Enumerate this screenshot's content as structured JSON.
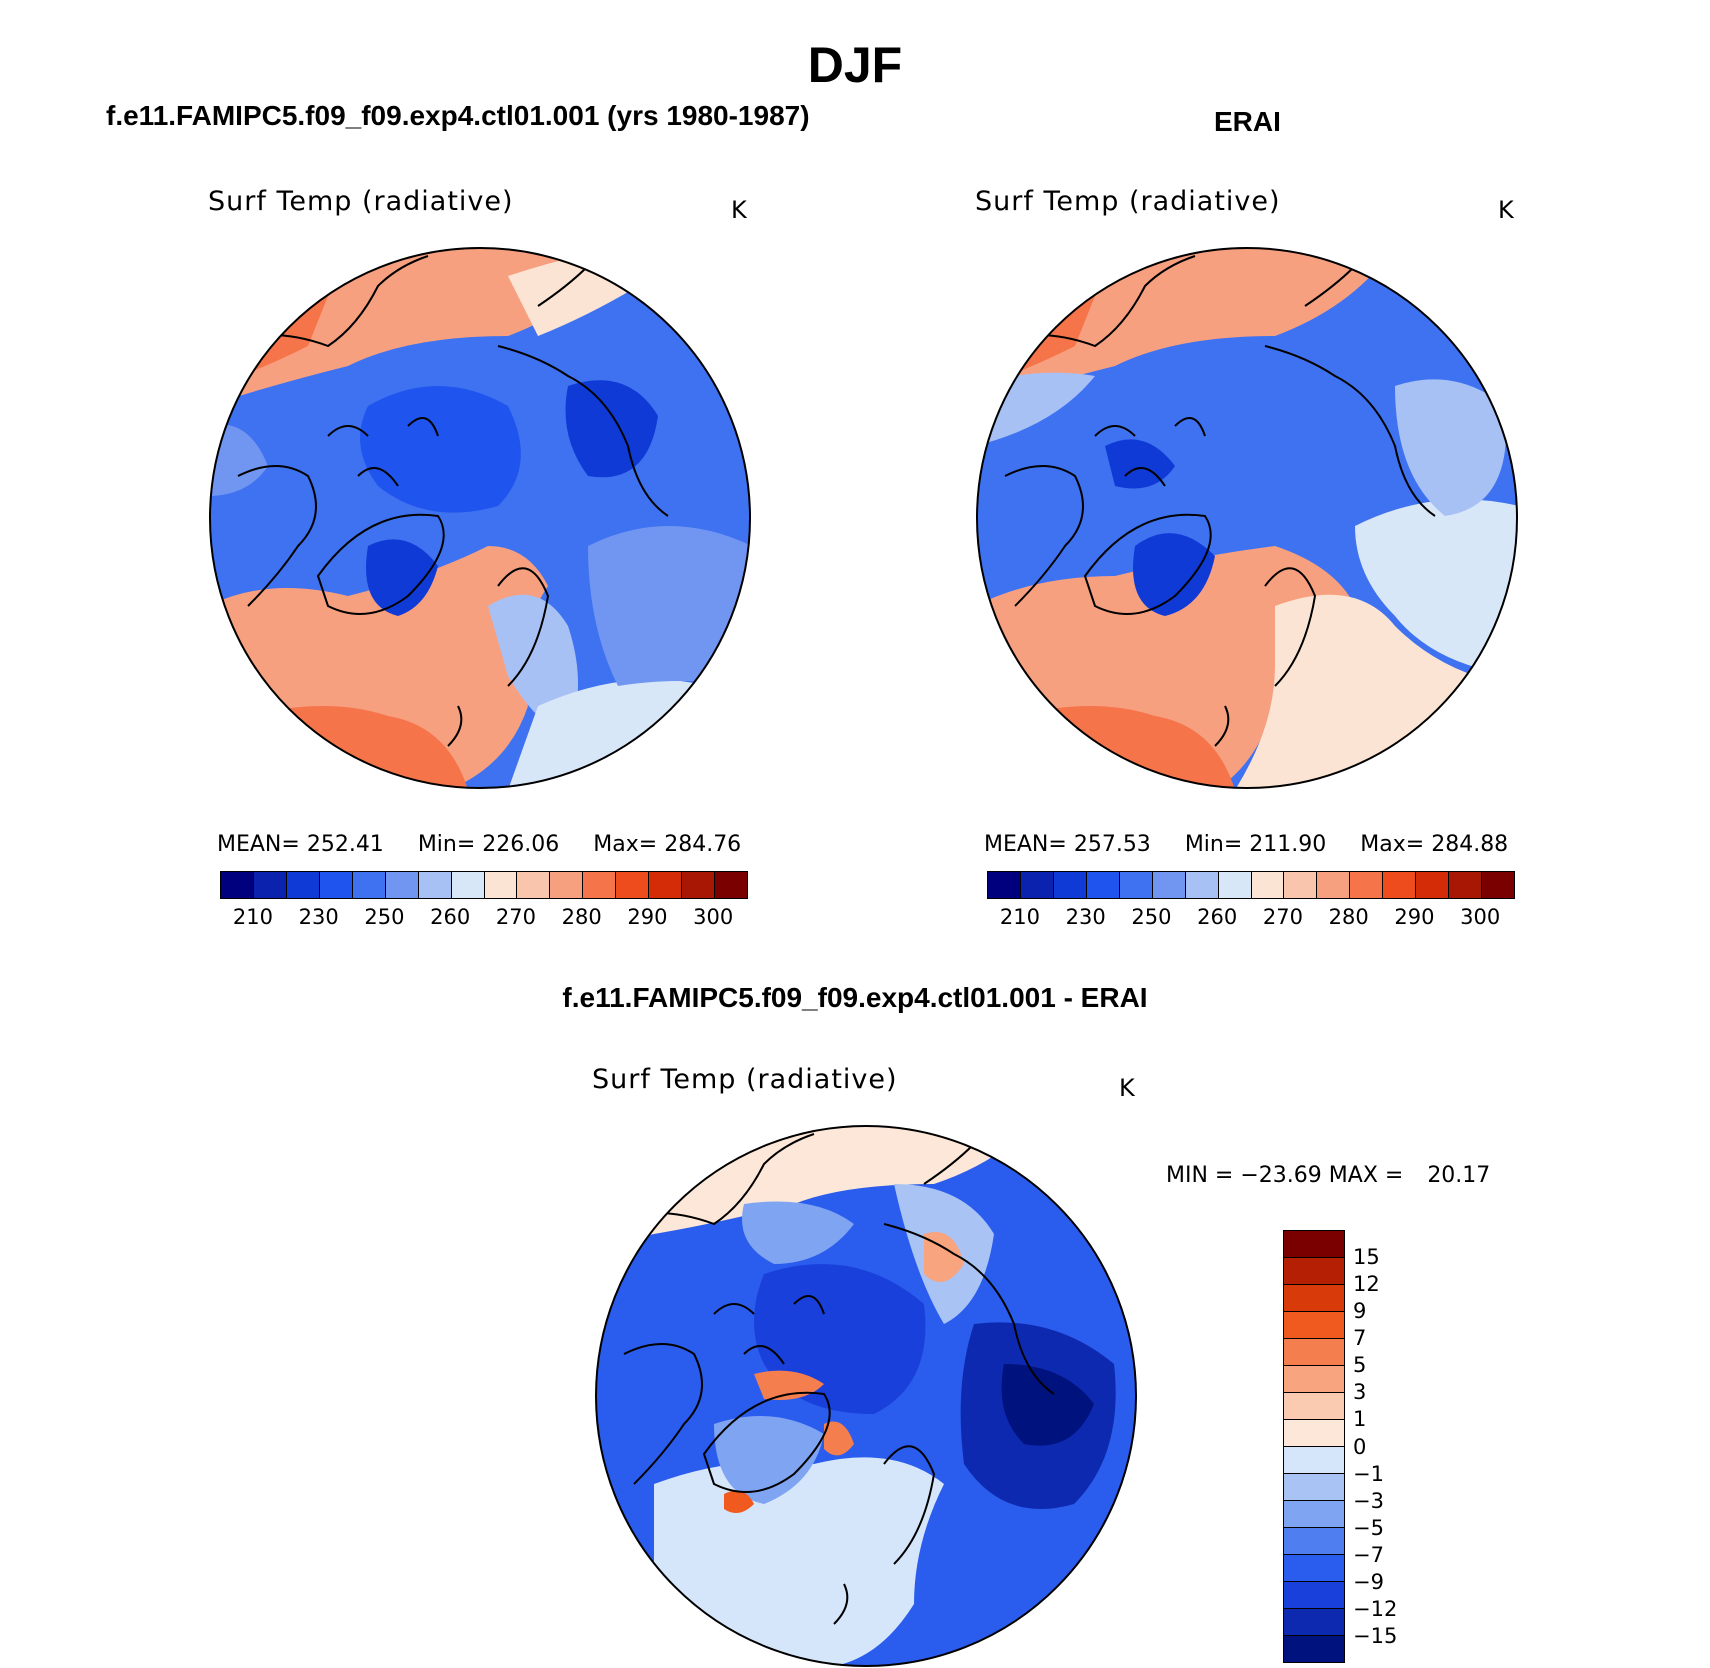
{
  "figure": {
    "title": "DJF",
    "diff_title": "f.e11.FAMIPC5.f09_f09.exp4.ctl01.001 - ERAI"
  },
  "panels": [
    {
      "case_title": "f.e11.FAMIPC5.f09_f09.exp4.ctl01.001 (yrs 1980-1987)",
      "variable": "Surf Temp (radiative)",
      "units": "K",
      "mean_label": "MEAN=",
      "mean": "252.41",
      "min_label": "Min=",
      "min": "226.06",
      "max_label": "Max=",
      "max": "284.76"
    },
    {
      "case_title": "ERAI",
      "variable": "Surf Temp (radiative)",
      "units": "K",
      "mean_label": "MEAN=",
      "mean": "257.53",
      "min_label": "Min=",
      "min": "211.90",
      "max_label": "Max=",
      "max": "284.88"
    }
  ],
  "diff_panel": {
    "variable": "Surf Temp (radiative)",
    "units": "K",
    "min_label": "MIN =",
    "min": "−23.69",
    "max_label": "MAX =",
    "max": "20.17"
  },
  "colorbar_abs": {
    "tick_labels": [
      "210",
      "230",
      "250",
      "260",
      "270",
      "280",
      "290",
      "300"
    ],
    "colors": [
      "#00007f",
      "#0a22ad",
      "#0f3ad6",
      "#1f55ee",
      "#3f72f0",
      "#7096f2",
      "#a8c1f5",
      "#d8e7f8",
      "#fbe4d3",
      "#f9c5ac",
      "#f7a080",
      "#f5744a",
      "#ef4c1e",
      "#d42c07",
      "#a81703",
      "#7a0000"
    ]
  },
  "colorbar_diff": {
    "tick_labels": [
      "15",
      "12",
      "9",
      "7",
      "5",
      "3",
      "1",
      "0",
      "−1",
      "−3",
      "−5",
      "−7",
      "−9",
      "−12",
      "−15"
    ],
    "colors": [
      "#7a0000",
      "#b52005",
      "#d83a0a",
      "#f15a1f",
      "#f57e4e",
      "#f8a47f",
      "#fbcbb1",
      "#fde7d8",
      "#d5e5fa",
      "#a9c3f5",
      "#7ea4f2",
      "#4f7ef0",
      "#2a5ced",
      "#1a40db",
      "#0d29b0",
      "#00127e"
    ]
  },
  "map_colors": {
    "warm_dark": "#f5744a",
    "warm_mid": "#f7a080",
    "warm_light": "#f9c5ac",
    "warm_pale": "#fbe4d3",
    "cold_pale": "#d8e7f8",
    "cold_light": "#a8c1f5",
    "cold_mid": "#7096f2",
    "cold": "#3f72f0",
    "cold_deep": "#1f55ee",
    "cold_deeper": "#0f3ad6",
    "cold_darkest": "#0a22ad"
  }
}
